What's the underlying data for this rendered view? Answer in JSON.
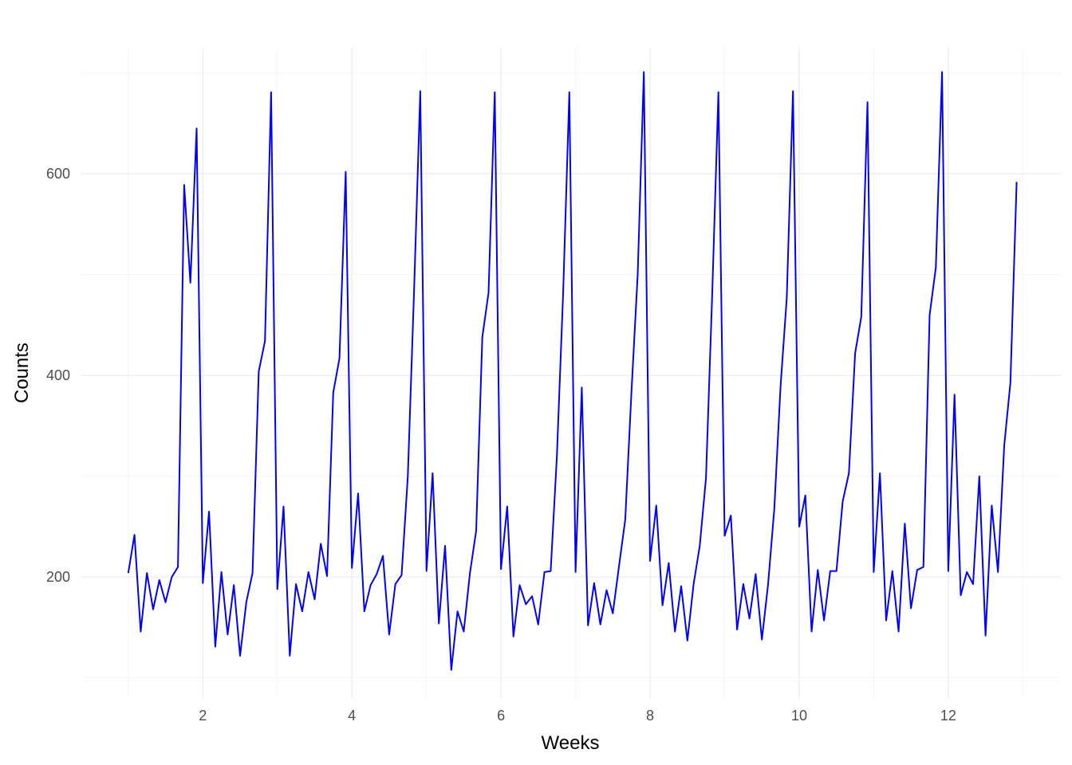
{
  "chart_data": {
    "type": "line",
    "title": "",
    "xlabel": "Weeks",
    "ylabel": "Counts",
    "xlim": [
      0.36,
      13.51
    ],
    "ylim": [
      80,
      725
    ],
    "x_ticks": [
      2,
      4,
      6,
      8,
      10,
      12
    ],
    "y_ticks": [
      200,
      400,
      600
    ],
    "x_minor_ticks": [
      1,
      3,
      5,
      7,
      9,
      11,
      13
    ],
    "y_minor_ticks": [
      100,
      300,
      500,
      700
    ],
    "grid": true,
    "legend": "none",
    "series": [
      {
        "color": "#0000FF",
        "x": [
          1.0,
          1.0833,
          1.1667,
          1.25,
          1.3333,
          1.4167,
          1.5,
          1.5833,
          1.6667,
          1.75,
          1.8333,
          1.9167,
          2.0,
          2.0833,
          2.1667,
          2.25,
          2.3333,
          2.4167,
          2.5,
          2.5833,
          2.6667,
          2.75,
          2.8333,
          2.9167,
          3.0,
          3.0833,
          3.1667,
          3.25,
          3.3333,
          3.4167,
          3.5,
          3.5833,
          3.6667,
          3.75,
          3.8333,
          3.9167,
          4.0,
          4.0833,
          4.1667,
          4.25,
          4.3333,
          4.4167,
          4.5,
          4.5833,
          4.6667,
          4.75,
          4.8333,
          4.9167,
          5.0,
          5.0833,
          5.1667,
          5.25,
          5.3333,
          5.4167,
          5.5,
          5.5833,
          5.6667,
          5.75,
          5.8333,
          5.9167,
          6.0,
          6.0833,
          6.1667,
          6.25,
          6.3333,
          6.4167,
          6.5,
          6.5833,
          6.6667,
          6.75,
          6.8333,
          6.9167,
          7.0,
          7.0833,
          7.1667,
          7.25,
          7.3333,
          7.4167,
          7.5,
          7.5833,
          7.6667,
          7.75,
          7.8333,
          7.9167,
          8.0,
          8.0833,
          8.1667,
          8.25,
          8.3333,
          8.4167,
          8.5,
          8.5833,
          8.6667,
          8.75,
          8.8333,
          8.9167,
          9.0,
          9.0833,
          9.1667,
          9.25,
          9.3333,
          9.4167,
          9.5,
          9.5833,
          9.6667,
          9.75,
          9.8333,
          9.9167,
          10.0,
          10.0833,
          10.1667,
          10.25,
          10.3333,
          10.4167,
          10.5,
          10.5833,
          10.6667,
          10.75,
          10.8333,
          10.9167,
          11.0,
          11.0833,
          11.1667,
          11.25,
          11.3333,
          11.4167,
          11.5,
          11.5833,
          11.6667,
          11.75,
          11.8333,
          11.9167,
          12.0,
          12.0833,
          12.1667,
          12.25,
          12.3333,
          12.4167,
          12.5,
          12.5833,
          12.6667,
          12.75,
          12.8333,
          12.9167
        ],
        "y": [
          204,
          242,
          146,
          204,
          168,
          197,
          175,
          200,
          210,
          589,
          492,
          645,
          194,
          265,
          131,
          205,
          143,
          192,
          122,
          175,
          204,
          404,
          434,
          681,
          188,
          270,
          122,
          193,
          166,
          205,
          178,
          233,
          201,
          383,
          417,
          602,
          209,
          283,
          166,
          192,
          203,
          221,
          143,
          193,
          202,
          300,
          483,
          682,
          206,
          303,
          154,
          231,
          108,
          166,
          146,
          204,
          246,
          438,
          482,
          681,
          208,
          270,
          141,
          192,
          173,
          181,
          153,
          205,
          206,
          320,
          481,
          681,
          205,
          388,
          152,
          194,
          153,
          187,
          164,
          211,
          257,
          384,
          500,
          701,
          216,
          271,
          172,
          214,
          146,
          191,
          137,
          193,
          231,
          298,
          480,
          681,
          241,
          261,
          148,
          193,
          159,
          203,
          138,
          193,
          268,
          389,
          477,
          682,
          250,
          281,
          146,
          207,
          157,
          206,
          206,
          275,
          303,
          422,
          458,
          671,
          205,
          303,
          157,
          206,
          146,
          253,
          169,
          207,
          210,
          460,
          507,
          701,
          206,
          381,
          182,
          205,
          193,
          300,
          142,
          271,
          205,
          330,
          393,
          592
        ]
      }
    ]
  }
}
